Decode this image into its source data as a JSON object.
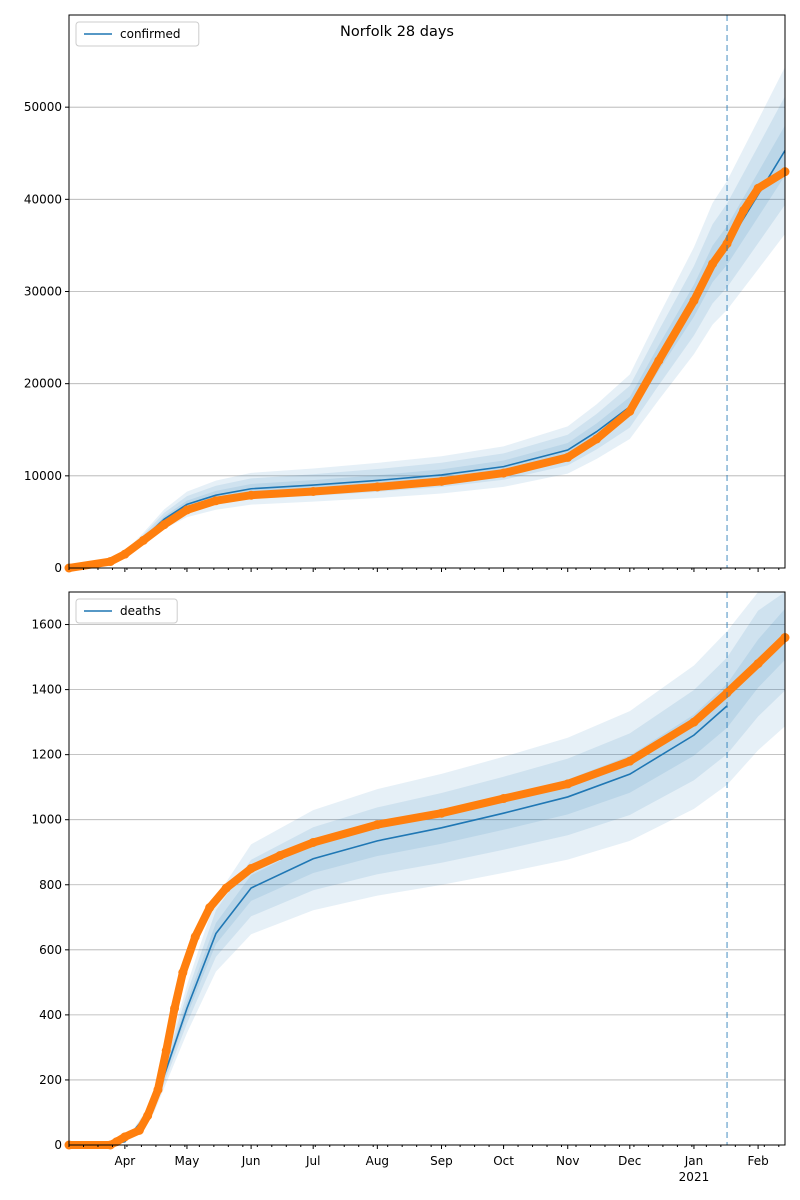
{
  "chart_data": [
    {
      "type": "line",
      "title": "Norfolk 28 days",
      "legend": {
        "label": "confirmed",
        "placement": "top-left"
      },
      "ylim": [
        0,
        60000
      ],
      "yticks": [
        0,
        10000,
        20000,
        30000,
        40000,
        50000
      ],
      "xlim": [
        "2020-03-05",
        "2021-02-14"
      ],
      "grid": "y",
      "forecast_start": "2021-01-17",
      "model": {
        "x": [
          "2020-03-05",
          "2020-03-25",
          "2020-04-01",
          "2020-04-10",
          "2020-04-20",
          "2020-05-01",
          "2020-05-15",
          "2020-06-01",
          "2020-07-01",
          "2020-08-01",
          "2020-09-01",
          "2020-10-01",
          "2020-11-01",
          "2020-11-15",
          "2020-12-01",
          "2020-12-15",
          "2021-01-01",
          "2021-01-10",
          "2021-01-17",
          "2021-02-01",
          "2021-02-14"
        ],
        "y": [
          0,
          600,
          1500,
          3200,
          5300,
          6900,
          7900,
          8600,
          9000,
          9500,
          10100,
          11000,
          12800,
          14800,
          17500,
          22800,
          29000,
          33000,
          35000,
          40500,
          45300
        ]
      },
      "bands": [
        [
          0.8,
          1.2
        ],
        [
          0.87,
          1.13
        ],
        [
          0.94,
          1.06
        ]
      ],
      "observed": {
        "x": [
          "2020-03-05",
          "2020-03-25",
          "2020-04-01",
          "2020-04-10",
          "2020-04-20",
          "2020-05-01",
          "2020-05-15",
          "2020-06-01",
          "2020-07-01",
          "2020-08-01",
          "2020-09-01",
          "2020-10-01",
          "2020-11-01",
          "2020-11-15",
          "2020-12-01",
          "2020-12-15",
          "2021-01-01",
          "2021-01-10",
          "2021-01-17",
          "2021-01-25",
          "2021-02-01",
          "2021-02-14"
        ],
        "y": [
          0,
          700,
          1500,
          3000,
          4700,
          6300,
          7300,
          7900,
          8300,
          8800,
          9400,
          10300,
          12000,
          14000,
          17000,
          22500,
          29000,
          33000,
          35200,
          38800,
          41200,
          43000
        ]
      }
    },
    {
      "type": "line",
      "title": "",
      "legend": {
        "label": "deaths",
        "placement": "top-left"
      },
      "ylim": [
        0,
        1700
      ],
      "yticks": [
        0,
        200,
        400,
        600,
        800,
        1000,
        1200,
        1400,
        1600
      ],
      "xlim": [
        "2020-03-05",
        "2021-02-14"
      ],
      "xticks": [
        "Apr",
        "May",
        "Jun",
        "Jul",
        "Aug",
        "Sep",
        "Oct",
        "Nov",
        "Dec",
        "Jan",
        "Feb"
      ],
      "xtick_dates": [
        "2020-04-01",
        "2020-05-01",
        "2020-06-01",
        "2020-07-01",
        "2020-08-01",
        "2020-09-01",
        "2020-10-01",
        "2020-11-01",
        "2020-12-01",
        "2021-01-01",
        "2021-02-01"
      ],
      "year_label": "2021",
      "grid": "y",
      "forecast_start": "2021-01-17",
      "model": {
        "x": [
          "2020-03-05",
          "2020-03-25",
          "2020-04-01",
          "2020-04-15",
          "2020-05-01",
          "2020-05-15",
          "2020-06-01",
          "2020-07-01",
          "2020-08-01",
          "2020-09-01",
          "2020-10-01",
          "2020-11-01",
          "2020-12-01",
          "2021-01-01",
          "2021-01-17"
        ],
        "y": [
          0,
          2,
          10,
          120,
          420,
          650,
          790,
          880,
          935,
          975,
          1020,
          1070,
          1140,
          1260,
          1350
        ]
      },
      "forecast_center": {
        "x": [
          "2021-01-17",
          "2021-02-01",
          "2021-02-14"
        ],
        "y": [
          1390,
          1480,
          1570
        ]
      },
      "bands": [
        [
          0.82,
          1.17
        ],
        [
          0.89,
          1.11
        ],
        [
          0.95,
          1.05
        ]
      ],
      "observed": {
        "x": [
          "2020-03-05",
          "2020-03-25",
          "2020-03-28",
          "2020-04-01",
          "2020-04-08",
          "2020-04-12",
          "2020-04-17",
          "2020-04-21",
          "2020-04-25",
          "2020-04-29",
          "2020-05-05",
          "2020-05-12",
          "2020-05-20",
          "2020-06-01",
          "2020-06-15",
          "2020-07-01",
          "2020-08-01",
          "2020-09-01",
          "2020-10-01",
          "2020-11-01",
          "2020-12-01",
          "2021-01-01",
          "2021-01-17",
          "2021-02-01",
          "2021-02-14"
        ],
        "y": [
          0,
          0,
          10,
          25,
          45,
          90,
          170,
          290,
          420,
          530,
          640,
          730,
          790,
          850,
          890,
          930,
          985,
          1020,
          1065,
          1110,
          1180,
          1300,
          1390,
          1480,
          1560
        ]
      }
    }
  ],
  "colors": {
    "model": "#1f77b4",
    "observed": "#ff7f0e",
    "band": "#1f77b4",
    "grid": "#b0b0b0"
  }
}
